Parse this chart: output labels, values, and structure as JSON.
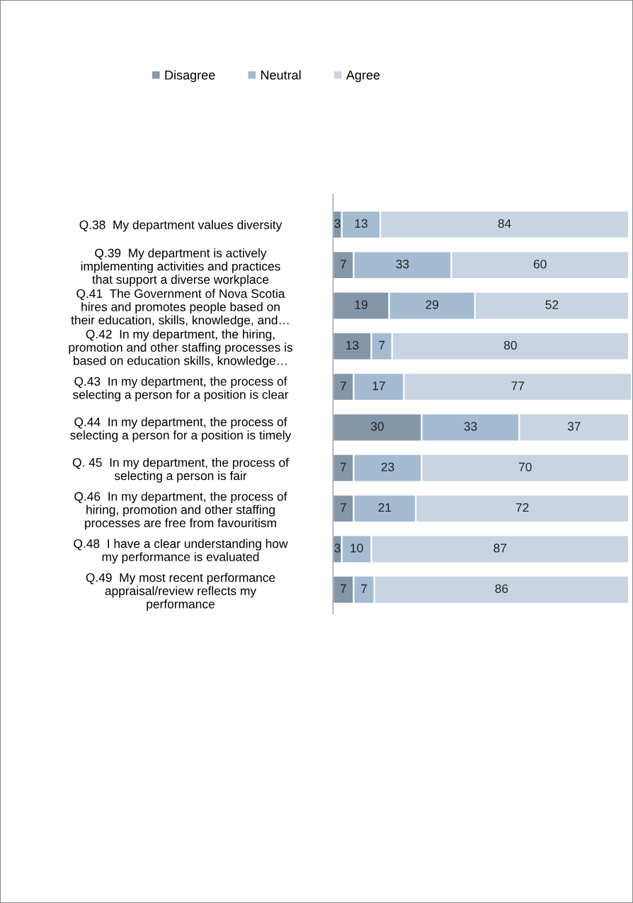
{
  "chart_data": {
    "type": "bar",
    "orientation": "horizontal",
    "stacked": true,
    "data_labels": true,
    "legend": "top",
    "grid": false,
    "tick_labels": "y",
    "categories": [
      "Q.38  My department values diversity",
      "Q.39  My department is actively\nimplementing activities and practices\nthat support a diverse workplace",
      "Q.41  The Government of Nova Scotia\nhires and promotes people based on\ntheir education, skills, knowledge, and…",
      "Q.42  In my department, the hiring,\npromotion and other staffing processes is\nbased on education skills, knowledge…",
      "Q.43  In my department, the process of\nselecting a person for a position is clear",
      "Q.44  In my department, the process of\nselecting a person for a position is timely",
      "Q. 45  In my department, the process of\nselecting a person is fair",
      "Q.46  In my department, the process of\nhiring, promotion and other staffing\nprocesses are free from favouritism",
      "Q.48  I have a clear understanding how\nmy performance is evaluated",
      "Q.49  My most recent performance\nappraisal/review reflects my\nperformance"
    ],
    "series": [
      {
        "name": "Disagree",
        "color": "#8497a9",
        "values": [
          3,
          7,
          19,
          13,
          7,
          30,
          7,
          7,
          3,
          7
        ]
      },
      {
        "name": "Neutral",
        "color": "#a4bbd2",
        "values": [
          13,
          33,
          29,
          7,
          17,
          33,
          23,
          21,
          10,
          7
        ]
      },
      {
        "name": "Agree",
        "color": "#c8d4e1",
        "values": [
          84,
          60,
          52,
          80,
          77,
          37,
          70,
          72,
          87,
          86
        ]
      }
    ]
  }
}
